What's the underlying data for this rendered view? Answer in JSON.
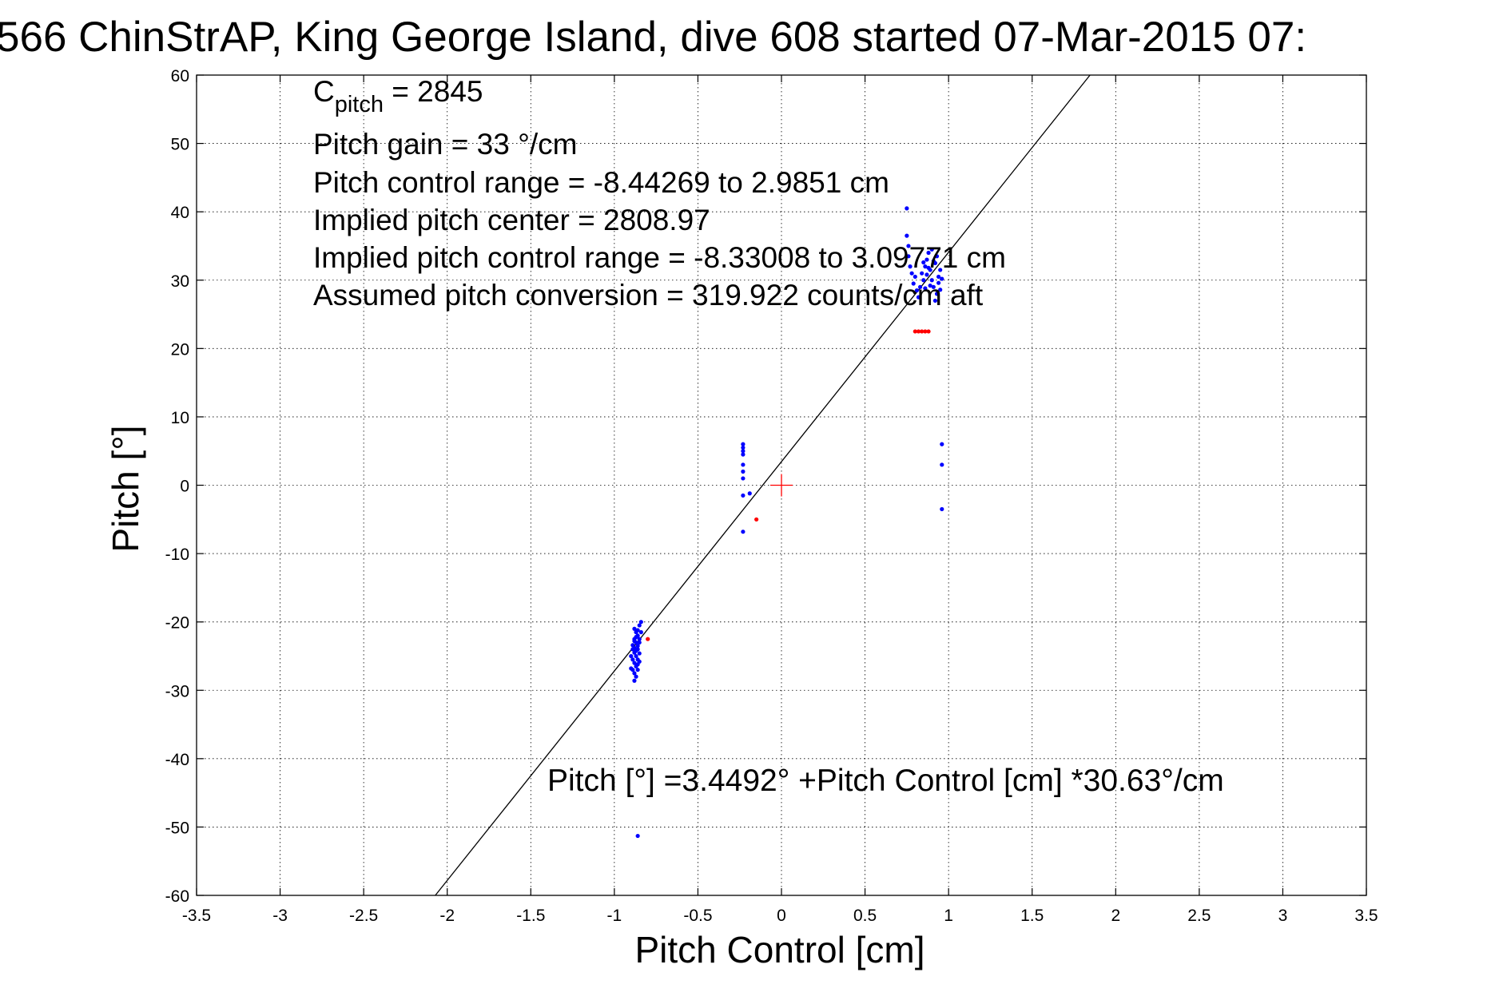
{
  "chart_data": {
    "type": "scatter",
    "title": "566 ChinStrAP, King George Island, dive 608 started 07-Mar-2015 07:",
    "xlabel": "Pitch Control [cm]",
    "ylabel": "Pitch [°]",
    "xlim": [
      -3.5,
      3.5
    ],
    "ylim": [
      -60,
      60
    ],
    "grid": true,
    "x_ticks": [
      "-3.5",
      "-3",
      "-2.5",
      "-2",
      "-1.5",
      "-1",
      "-0.5",
      "0",
      "0.5",
      "1",
      "1.5",
      "2",
      "2.5",
      "3",
      "3.5"
    ],
    "y_ticks": [
      "60",
      "50",
      "40",
      "30",
      "20",
      "10",
      "0",
      "-10",
      "-20",
      "-30",
      "-40",
      "-50",
      "-60"
    ],
    "annotations": {
      "c_pitch_main": "C",
      "c_pitch_sub": "pitch",
      "c_pitch_value": " = 2845",
      "pitch_gain": "Pitch gain = 33 °/cm",
      "control_range": "Pitch control range = -8.44269 to 2.9851 cm",
      "implied_center": "Implied pitch center = 2808.97",
      "implied_range": "Implied pitch control range = -8.33008 to 3.09771 cm",
      "assumed_conversion": "Assumed pitch conversion = 319.922 counts/cm aft"
    },
    "fit_equation": "Pitch [°] =3.4492° +Pitch Control [cm] *30.63°/cm",
    "fit_line": {
      "intercept": 3.4492,
      "slope": 30.63
    },
    "center_marker": {
      "x": 0,
      "y": 0,
      "color": "#ff0000"
    },
    "colors": {
      "series_blue": "#0000ff",
      "series_red": "#ff0000",
      "line": "#000000"
    },
    "series": [
      {
        "color": "#0000ff",
        "points": [
          [
            -0.88,
            -21.0
          ],
          [
            -0.87,
            -21.5
          ],
          [
            -0.86,
            -22.0
          ],
          [
            -0.85,
            -20.5
          ],
          [
            -0.84,
            -20.0
          ],
          [
            -0.88,
            -22.5
          ],
          [
            -0.87,
            -23.0
          ],
          [
            -0.86,
            -23.5
          ],
          [
            -0.89,
            -24.0
          ],
          [
            -0.88,
            -24.5
          ],
          [
            -0.87,
            -25.0
          ],
          [
            -0.86,
            -24.0
          ],
          [
            -0.85,
            -23.0
          ],
          [
            -0.89,
            -25.5
          ],
          [
            -0.88,
            -26.0
          ],
          [
            -0.87,
            -26.5
          ],
          [
            -0.9,
            -25.0
          ],
          [
            -0.89,
            -27.0
          ],
          [
            -0.88,
            -27.5
          ],
          [
            -0.87,
            -28.0
          ],
          [
            -0.88,
            -28.6
          ],
          [
            -0.86,
            -27.0
          ],
          [
            -0.85,
            -22.5
          ],
          [
            -0.84,
            -21.5
          ],
          [
            -0.86,
            -25.5
          ],
          [
            -0.87,
            -24.2
          ],
          [
            -0.89,
            -23.4
          ],
          [
            -0.88,
            -22.8
          ],
          [
            -0.85,
            -24.6
          ],
          [
            -0.86,
            -26.2
          ],
          [
            -0.9,
            -26.8
          ],
          [
            -0.87,
            -22.2
          ],
          [
            -0.86,
            -21.2
          ],
          [
            -0.85,
            -25.8
          ],
          [
            -0.88,
            -23.8
          ],
          [
            -0.23,
            6.0
          ],
          [
            -0.23,
            5.5
          ],
          [
            -0.23,
            5.0
          ],
          [
            -0.23,
            4.5
          ],
          [
            -0.23,
            3.0
          ],
          [
            -0.23,
            2.0
          ],
          [
            -0.23,
            1.0
          ],
          [
            -0.23,
            -1.5
          ],
          [
            -0.23,
            -6.8
          ],
          [
            -0.19,
            -1.2
          ],
          [
            0.75,
            40.5
          ],
          [
            0.75,
            36.5
          ],
          [
            0.76,
            35.0
          ],
          [
            0.76,
            33.5
          ],
          [
            0.77,
            32.0
          ],
          [
            0.78,
            31.0
          ],
          [
            0.79,
            29.5
          ],
          [
            0.8,
            30.5
          ],
          [
            0.81,
            28.5
          ],
          [
            0.82,
            27.5
          ],
          [
            0.83,
            29.0
          ],
          [
            0.84,
            31.0
          ],
          [
            0.85,
            30.0
          ],
          [
            0.86,
            32.0
          ],
          [
            0.87,
            33.0
          ],
          [
            0.88,
            34.0
          ],
          [
            0.89,
            31.5
          ],
          [
            0.9,
            30.0
          ],
          [
            0.91,
            29.0
          ],
          [
            0.92,
            32.5
          ],
          [
            0.93,
            33.5
          ],
          [
            0.94,
            30.5
          ],
          [
            0.95,
            31.5
          ],
          [
            0.93,
            28.0
          ],
          [
            0.92,
            27.0
          ],
          [
            0.9,
            34.5
          ],
          [
            0.91,
            32.8
          ],
          [
            0.89,
            29.2
          ],
          [
            0.87,
            30.8
          ],
          [
            0.86,
            28.8
          ],
          [
            0.88,
            31.8
          ],
          [
            0.94,
            29.6
          ],
          [
            0.85,
            32.6
          ],
          [
            0.96,
            30.2
          ],
          [
            0.95,
            28.6
          ],
          [
            0.96,
            6.0
          ],
          [
            0.96,
            3.0
          ],
          [
            0.96,
            -3.5
          ],
          [
            -0.86,
            -51.3
          ]
        ]
      },
      {
        "color": "#ff0000",
        "points": [
          [
            0.8,
            22.5
          ],
          [
            0.82,
            22.5
          ],
          [
            0.84,
            22.5
          ],
          [
            0.86,
            22.5
          ],
          [
            0.88,
            22.5
          ],
          [
            -0.8,
            -22.5
          ],
          [
            -0.15,
            -5.0
          ]
        ]
      }
    ]
  }
}
